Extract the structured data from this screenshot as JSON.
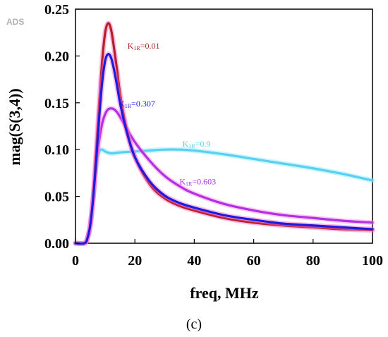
{
  "chart_data": {
    "type": "line",
    "watermark": "ADS",
    "caption": "(c)",
    "xlabel": "freq, MHz",
    "ylabel": "mag(S(3,4))",
    "xlim": [
      0,
      100
    ],
    "ylim": [
      0,
      0.25
    ],
    "xticks": [
      "0",
      "20",
      "40",
      "60",
      "80",
      "100"
    ],
    "yticks": [
      "0.00",
      "0.05",
      "0.10",
      "0.15",
      "0.20",
      "0.25"
    ],
    "grid": false,
    "series": [
      {
        "name": "K1R=0.01",
        "label_main": "K",
        "label_sub": "1R",
        "label_value": "=0.01",
        "color": "#b22222",
        "glow": "#ff66cc",
        "x": [
          0,
          3,
          4,
          5,
          6,
          7,
          8,
          9,
          10,
          11,
          12,
          13,
          14,
          15,
          17,
          20,
          25,
          30,
          35,
          40,
          50,
          60,
          70,
          80,
          90,
          100
        ],
        "y": [
          0.0,
          0.0,
          0.005,
          0.02,
          0.05,
          0.1,
          0.15,
          0.195,
          0.225,
          0.235,
          0.228,
          0.208,
          0.185,
          0.16,
          0.125,
          0.092,
          0.063,
          0.048,
          0.04,
          0.035,
          0.027,
          0.022,
          0.019,
          0.017,
          0.015,
          0.014
        ]
      },
      {
        "name": "K1R=0.307",
        "label_main": "K",
        "label_sub": "1R",
        "label_value": "=0.307",
        "color": "#1c1ce0",
        "glow": "#ff66cc",
        "x": [
          0,
          3,
          4,
          5,
          6,
          7,
          8,
          9,
          10,
          11,
          12,
          13,
          14,
          15,
          17,
          20,
          25,
          30,
          35,
          40,
          50,
          60,
          70,
          80,
          90,
          100
        ],
        "y": [
          0.0,
          0.0,
          0.005,
          0.02,
          0.05,
          0.09,
          0.135,
          0.172,
          0.195,
          0.202,
          0.198,
          0.185,
          0.168,
          0.15,
          0.122,
          0.092,
          0.066,
          0.051,
          0.043,
          0.038,
          0.03,
          0.025,
          0.021,
          0.019,
          0.017,
          0.015
        ]
      },
      {
        "name": "K1R=0.603",
        "label_main": "K",
        "label_sub": "1R",
        "label_value": "=0.603",
        "color": "#b030e8",
        "glow": "#ff88dd",
        "x": [
          0,
          3,
          4,
          5,
          6,
          7,
          8,
          9,
          10,
          11,
          12,
          13,
          14,
          15,
          17,
          20,
          25,
          30,
          35,
          40,
          50,
          60,
          70,
          80,
          90,
          100
        ],
        "y": [
          0.0,
          0.0,
          0.005,
          0.02,
          0.05,
          0.085,
          0.11,
          0.128,
          0.138,
          0.143,
          0.144,
          0.143,
          0.14,
          0.135,
          0.124,
          0.108,
          0.088,
          0.072,
          0.061,
          0.053,
          0.042,
          0.035,
          0.03,
          0.027,
          0.024,
          0.022
        ]
      },
      {
        "name": "K1R=0.9",
        "label_main": "K",
        "label_sub": "1R",
        "label_value": "=0.9",
        "color": "#5ad0f0",
        "glow": "#88e8ff",
        "x": [
          0,
          3,
          4,
          5,
          6,
          7,
          8,
          9,
          10,
          12,
          15,
          20,
          25,
          30,
          35,
          40,
          50,
          60,
          70,
          80,
          90,
          100
        ],
        "y": [
          0.0,
          0.0,
          0.005,
          0.02,
          0.05,
          0.085,
          0.098,
          0.1,
          0.098,
          0.096,
          0.097,
          0.098,
          0.099,
          0.1,
          0.1,
          0.099,
          0.095,
          0.09,
          0.085,
          0.08,
          0.074,
          0.067
        ]
      }
    ],
    "annotations": [
      {
        "series": 0,
        "x": 17.5,
        "y": 0.208
      },
      {
        "series": 1,
        "x": 14.5,
        "y": 0.146
      },
      {
        "series": 3,
        "x": 36,
        "y": 0.103
      },
      {
        "series": 2,
        "x": 35,
        "y": 0.063
      }
    ]
  }
}
